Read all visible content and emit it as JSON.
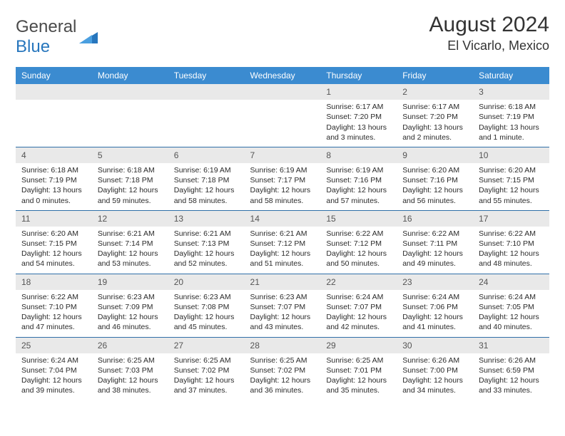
{
  "brand": {
    "word1": "General",
    "word2": "Blue"
  },
  "title": "August 2024",
  "location": "El Vicarlo, Mexico",
  "colors": {
    "header_bg": "#3b8bd0",
    "row_sep": "#2f6fa8",
    "daynum_bg": "#e9e9e9",
    "brand_blue": "#2776bd"
  },
  "weekdays": [
    "Sunday",
    "Monday",
    "Tuesday",
    "Wednesday",
    "Thursday",
    "Friday",
    "Saturday"
  ],
  "weeks": [
    [
      {
        "n": "",
        "sr": "",
        "ss": "",
        "dl": ""
      },
      {
        "n": "",
        "sr": "",
        "ss": "",
        "dl": ""
      },
      {
        "n": "",
        "sr": "",
        "ss": "",
        "dl": ""
      },
      {
        "n": "",
        "sr": "",
        "ss": "",
        "dl": ""
      },
      {
        "n": "1",
        "sr": "Sunrise: 6:17 AM",
        "ss": "Sunset: 7:20 PM",
        "dl": "Daylight: 13 hours and 3 minutes."
      },
      {
        "n": "2",
        "sr": "Sunrise: 6:17 AM",
        "ss": "Sunset: 7:20 PM",
        "dl": "Daylight: 13 hours and 2 minutes."
      },
      {
        "n": "3",
        "sr": "Sunrise: 6:18 AM",
        "ss": "Sunset: 7:19 PM",
        "dl": "Daylight: 13 hours and 1 minute."
      }
    ],
    [
      {
        "n": "4",
        "sr": "Sunrise: 6:18 AM",
        "ss": "Sunset: 7:19 PM",
        "dl": "Daylight: 13 hours and 0 minutes."
      },
      {
        "n": "5",
        "sr": "Sunrise: 6:18 AM",
        "ss": "Sunset: 7:18 PM",
        "dl": "Daylight: 12 hours and 59 minutes."
      },
      {
        "n": "6",
        "sr": "Sunrise: 6:19 AM",
        "ss": "Sunset: 7:18 PM",
        "dl": "Daylight: 12 hours and 58 minutes."
      },
      {
        "n": "7",
        "sr": "Sunrise: 6:19 AM",
        "ss": "Sunset: 7:17 PM",
        "dl": "Daylight: 12 hours and 58 minutes."
      },
      {
        "n": "8",
        "sr": "Sunrise: 6:19 AM",
        "ss": "Sunset: 7:16 PM",
        "dl": "Daylight: 12 hours and 57 minutes."
      },
      {
        "n": "9",
        "sr": "Sunrise: 6:20 AM",
        "ss": "Sunset: 7:16 PM",
        "dl": "Daylight: 12 hours and 56 minutes."
      },
      {
        "n": "10",
        "sr": "Sunrise: 6:20 AM",
        "ss": "Sunset: 7:15 PM",
        "dl": "Daylight: 12 hours and 55 minutes."
      }
    ],
    [
      {
        "n": "11",
        "sr": "Sunrise: 6:20 AM",
        "ss": "Sunset: 7:15 PM",
        "dl": "Daylight: 12 hours and 54 minutes."
      },
      {
        "n": "12",
        "sr": "Sunrise: 6:21 AM",
        "ss": "Sunset: 7:14 PM",
        "dl": "Daylight: 12 hours and 53 minutes."
      },
      {
        "n": "13",
        "sr": "Sunrise: 6:21 AM",
        "ss": "Sunset: 7:13 PM",
        "dl": "Daylight: 12 hours and 52 minutes."
      },
      {
        "n": "14",
        "sr": "Sunrise: 6:21 AM",
        "ss": "Sunset: 7:12 PM",
        "dl": "Daylight: 12 hours and 51 minutes."
      },
      {
        "n": "15",
        "sr": "Sunrise: 6:22 AM",
        "ss": "Sunset: 7:12 PM",
        "dl": "Daylight: 12 hours and 50 minutes."
      },
      {
        "n": "16",
        "sr": "Sunrise: 6:22 AM",
        "ss": "Sunset: 7:11 PM",
        "dl": "Daylight: 12 hours and 49 minutes."
      },
      {
        "n": "17",
        "sr": "Sunrise: 6:22 AM",
        "ss": "Sunset: 7:10 PM",
        "dl": "Daylight: 12 hours and 48 minutes."
      }
    ],
    [
      {
        "n": "18",
        "sr": "Sunrise: 6:22 AM",
        "ss": "Sunset: 7:10 PM",
        "dl": "Daylight: 12 hours and 47 minutes."
      },
      {
        "n": "19",
        "sr": "Sunrise: 6:23 AM",
        "ss": "Sunset: 7:09 PM",
        "dl": "Daylight: 12 hours and 46 minutes."
      },
      {
        "n": "20",
        "sr": "Sunrise: 6:23 AM",
        "ss": "Sunset: 7:08 PM",
        "dl": "Daylight: 12 hours and 45 minutes."
      },
      {
        "n": "21",
        "sr": "Sunrise: 6:23 AM",
        "ss": "Sunset: 7:07 PM",
        "dl": "Daylight: 12 hours and 43 minutes."
      },
      {
        "n": "22",
        "sr": "Sunrise: 6:24 AM",
        "ss": "Sunset: 7:07 PM",
        "dl": "Daylight: 12 hours and 42 minutes."
      },
      {
        "n": "23",
        "sr": "Sunrise: 6:24 AM",
        "ss": "Sunset: 7:06 PM",
        "dl": "Daylight: 12 hours and 41 minutes."
      },
      {
        "n": "24",
        "sr": "Sunrise: 6:24 AM",
        "ss": "Sunset: 7:05 PM",
        "dl": "Daylight: 12 hours and 40 minutes."
      }
    ],
    [
      {
        "n": "25",
        "sr": "Sunrise: 6:24 AM",
        "ss": "Sunset: 7:04 PM",
        "dl": "Daylight: 12 hours and 39 minutes."
      },
      {
        "n": "26",
        "sr": "Sunrise: 6:25 AM",
        "ss": "Sunset: 7:03 PM",
        "dl": "Daylight: 12 hours and 38 minutes."
      },
      {
        "n": "27",
        "sr": "Sunrise: 6:25 AM",
        "ss": "Sunset: 7:02 PM",
        "dl": "Daylight: 12 hours and 37 minutes."
      },
      {
        "n": "28",
        "sr": "Sunrise: 6:25 AM",
        "ss": "Sunset: 7:02 PM",
        "dl": "Daylight: 12 hours and 36 minutes."
      },
      {
        "n": "29",
        "sr": "Sunrise: 6:25 AM",
        "ss": "Sunset: 7:01 PM",
        "dl": "Daylight: 12 hours and 35 minutes."
      },
      {
        "n": "30",
        "sr": "Sunrise: 6:26 AM",
        "ss": "Sunset: 7:00 PM",
        "dl": "Daylight: 12 hours and 34 minutes."
      },
      {
        "n": "31",
        "sr": "Sunrise: 6:26 AM",
        "ss": "Sunset: 6:59 PM",
        "dl": "Daylight: 12 hours and 33 minutes."
      }
    ]
  ]
}
